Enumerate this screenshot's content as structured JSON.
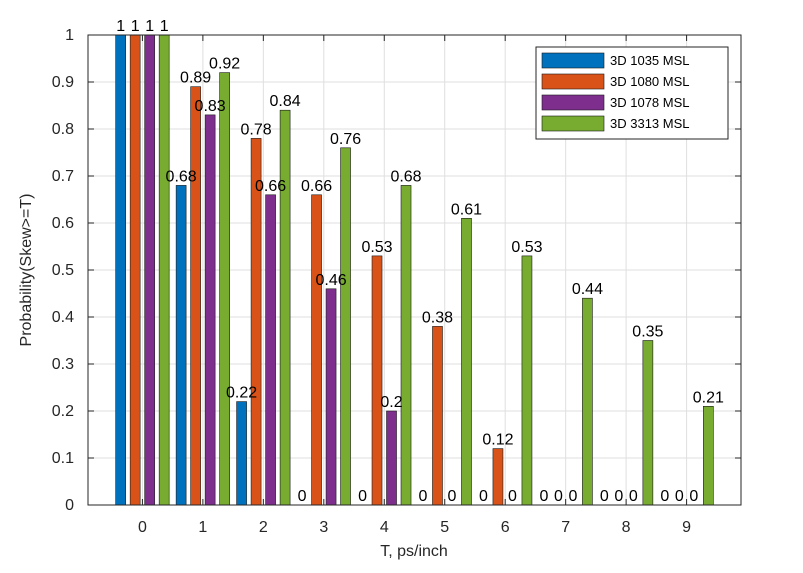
{
  "chart_data": {
    "type": "bar",
    "title": "",
    "xlabel": "T, ps/inch",
    "ylabel": "Probability(Skew>=T)",
    "categories": [
      "0",
      "1",
      "2",
      "3",
      "4",
      "5",
      "6",
      "7",
      "8",
      "9"
    ],
    "ylim": [
      0,
      1
    ],
    "yticks": [
      "0",
      "0.1",
      "0.2",
      "0.3",
      "0.4",
      "0.5",
      "0.6",
      "0.7",
      "0.8",
      "0.9",
      "1"
    ],
    "grid": true,
    "legend_position": "top-right",
    "series": [
      {
        "name": "3D 1035 MSL",
        "color": "#0072BD",
        "values": [
          1,
          0.68,
          0.22,
          0,
          0,
          0,
          0,
          0,
          0,
          0
        ],
        "labels": [
          "1",
          "0.68",
          "0.22",
          "0",
          "0",
          "0",
          "0",
          "0",
          "0",
          "0"
        ]
      },
      {
        "name": "3D 1080 MSL",
        "color": "#D95319",
        "values": [
          1,
          0.89,
          0.78,
          0.66,
          0.53,
          0.38,
          0.12,
          0,
          0,
          0
        ],
        "labels": [
          "1",
          "0.89",
          "0.78",
          "0.66",
          "0.53",
          "0.38",
          "0.12",
          "0",
          "0",
          "0"
        ]
      },
      {
        "name": "3D 1078 MSL",
        "color": "#7E2F8E",
        "values": [
          1,
          0.83,
          0.66,
          0.46,
          0.2,
          0,
          0,
          0,
          0,
          0
        ],
        "labels": [
          "1",
          "0.83",
          "0.66",
          "0.46",
          "0.2",
          "0",
          "0",
          "0",
          "0",
          "0"
        ]
      },
      {
        "name": "3D 3313 MSL",
        "color": "#77AC30",
        "values": [
          1,
          0.92,
          0.84,
          0.76,
          0.68,
          0.61,
          0.53,
          0.44,
          0.35,
          0.21
        ],
        "labels": [
          "1",
          "0.92",
          "0.84",
          "0.76",
          "0.68",
          "0.61",
          "0.53",
          "0.44",
          "0.35",
          "0.21"
        ]
      }
    ]
  }
}
